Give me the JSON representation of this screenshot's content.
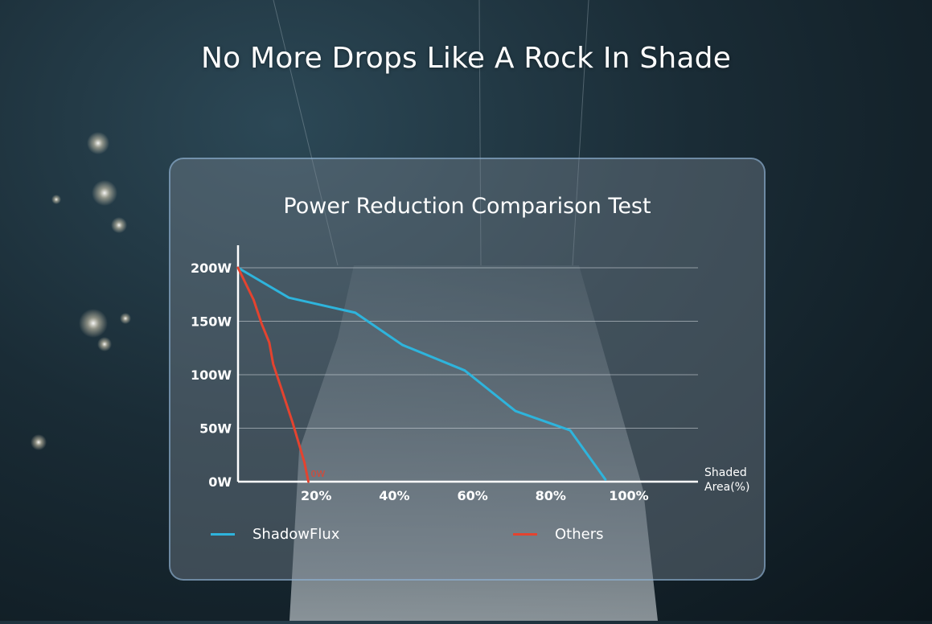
{
  "page": {
    "headline": "No More Drops Like A Rock In Shade"
  },
  "chart_data": {
    "type": "line",
    "title": "Power Reduction Comparison Test",
    "xlabel": "Shaded Area(%)",
    "ylabel": "",
    "xlim": [
      0,
      100
    ],
    "ylim": [
      0,
      200
    ],
    "x_ticks": [
      "20%",
      "40%",
      "60%",
      "80%",
      "100%"
    ],
    "y_ticks": [
      "0W",
      "50W",
      "100W",
      "150W",
      "200W"
    ],
    "grid": true,
    "legend_position": "bottom",
    "series": [
      {
        "name": "ShadowFlux",
        "color": "#2eb4dc",
        "x": [
          0,
          13,
          30,
          42,
          58,
          71,
          85,
          94
        ],
        "y": [
          200,
          172,
          158,
          128,
          104,
          66,
          48,
          2
        ]
      },
      {
        "name": "Others",
        "color": "#e4432f",
        "x": [
          0,
          4,
          6,
          8,
          9,
          11,
          14,
          17,
          18
        ],
        "y": [
          200,
          170,
          148,
          130,
          110,
          88,
          55,
          18,
          0
        ]
      }
    ],
    "annotations": [
      {
        "text": "0W",
        "series": "Others",
        "x": 18,
        "y": 0,
        "color": "#e4432f"
      }
    ]
  }
}
